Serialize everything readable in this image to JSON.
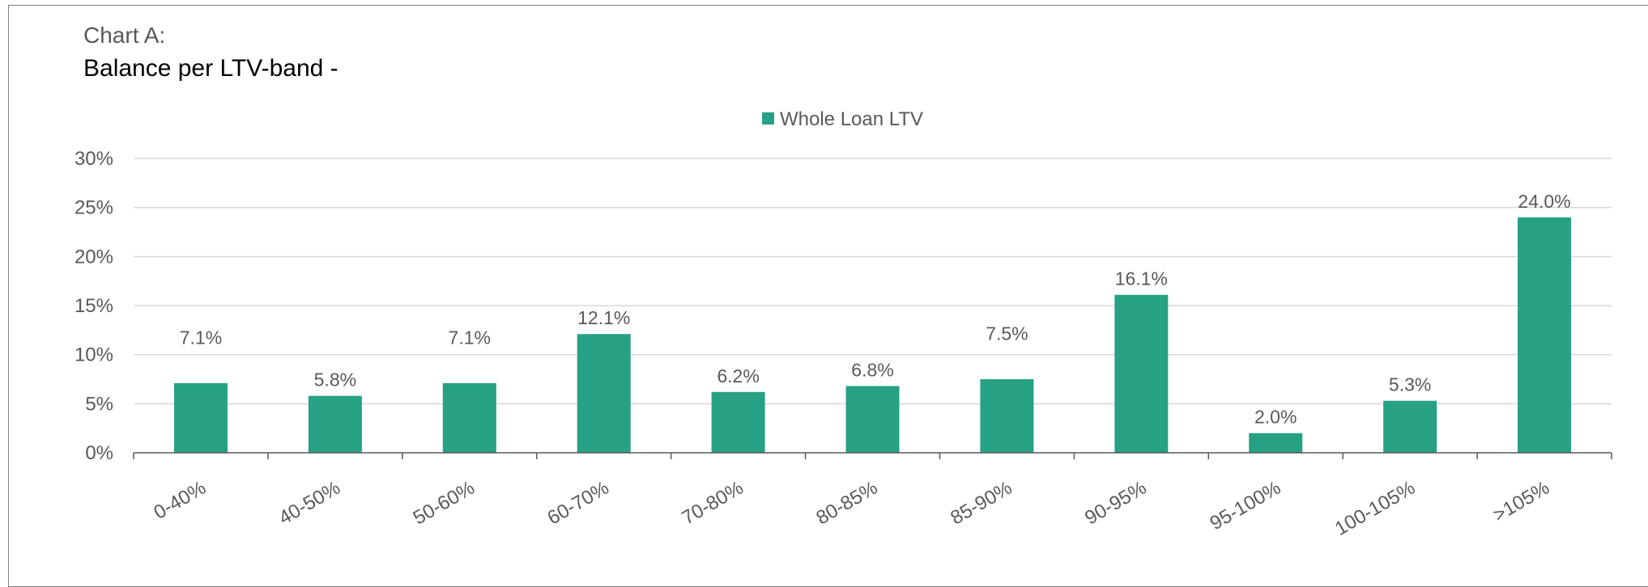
{
  "header": {
    "subtitle": "Chart A:",
    "title": "Balance per LTV-band -"
  },
  "colors": {
    "bar": "#26a183",
    "grid": "#d9d9d9",
    "axis": "#595959"
  },
  "chart_data": {
    "type": "bar",
    "title": "Balance per LTV-band -",
    "xlabel": "",
    "ylabel": "",
    "categories": [
      "0-40%",
      "40-50%",
      "50-60%",
      "60-70%",
      "70-80%",
      "80-85%",
      "85-90%",
      "90-95%",
      "95-100%",
      "100-105%",
      ">105%"
    ],
    "series": [
      {
        "name": "Whole Loan LTV",
        "values": [
          7.1,
          5.8,
          7.1,
          12.1,
          6.2,
          6.8,
          7.5,
          16.1,
          2.0,
          5.3,
          24.0
        ],
        "labels": [
          "7.1%",
          "5.8%",
          "7.1%",
          "12.1%",
          "6.2%",
          "6.8%",
          "7.5%",
          "16.1%",
          "2.0%",
          "5.3%",
          "24.0%"
        ],
        "label_offsets": [
          3,
          0,
          3,
          0,
          0,
          0,
          3,
          0,
          0,
          0,
          0
        ]
      }
    ],
    "ylim": [
      0,
      30
    ],
    "yticks": [
      0,
      5,
      10,
      15,
      20,
      25,
      30
    ],
    "ytick_labels": [
      "0%",
      "5%",
      "10%",
      "15%",
      "20%",
      "25%",
      "30%"
    ],
    "grid": true,
    "legend_position": "top-center"
  }
}
